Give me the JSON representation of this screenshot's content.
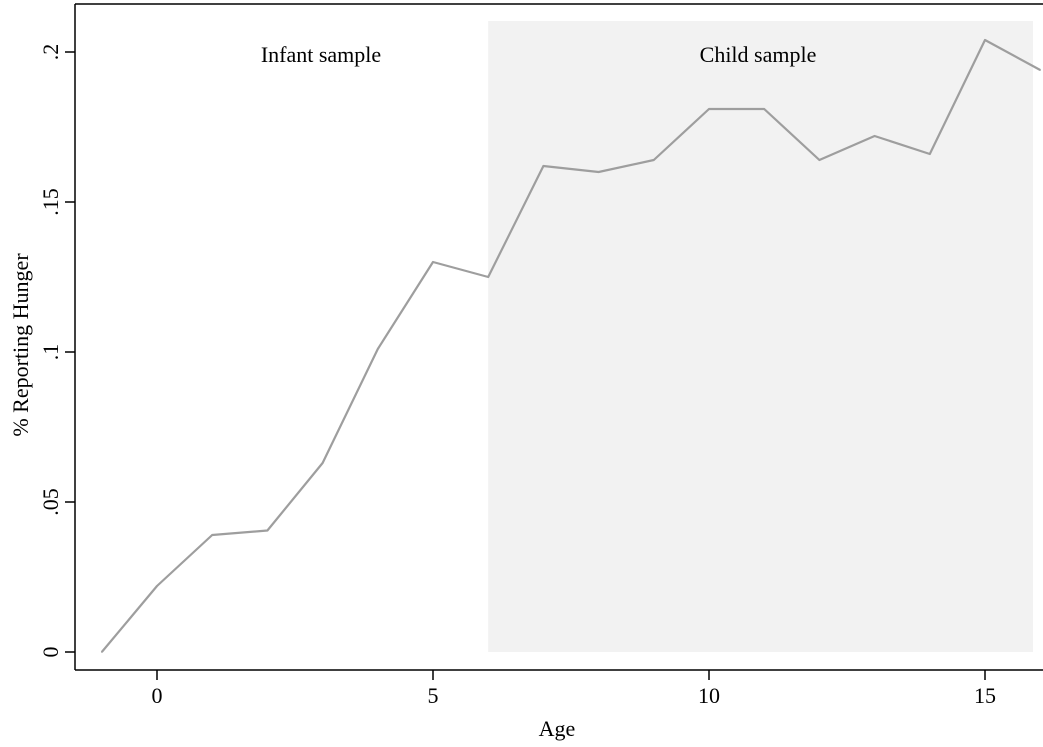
{
  "chart_data": {
    "type": "line",
    "xlabel": "Age",
    "ylabel": "% Reporting Hunger",
    "xlim": [
      -1,
      16
    ],
    "ylim": [
      0,
      0.2
    ],
    "x_ticks": [
      {
        "value": 0,
        "label": "0"
      },
      {
        "value": 5,
        "label": "5"
      },
      {
        "value": 10,
        "label": "10"
      },
      {
        "value": 15,
        "label": "15"
      }
    ],
    "y_ticks": [
      {
        "value": 0,
        "label": "0"
      },
      {
        "value": 0.05,
        "label": ".05"
      },
      {
        "value": 0.1,
        "label": ".1"
      },
      {
        "value": 0.15,
        "label": ".15"
      },
      {
        "value": 0.2,
        "label": ".2"
      }
    ],
    "grid": false,
    "series": [
      {
        "x": [
          -1,
          0,
          1,
          2,
          3,
          4,
          5,
          6,
          7,
          8,
          9,
          10,
          11,
          12,
          13,
          14,
          15,
          16
        ],
        "values": [
          0.0,
          0.022,
          0.039,
          0.0405,
          0.063,
          0.101,
          0.13,
          0.125,
          0.162,
          0.16,
          0.164,
          0.181,
          0.181,
          0.164,
          0.172,
          0.166,
          0.204,
          0.194
        ],
        "color": "#9e9e9e"
      }
    ],
    "regions": [
      {
        "label": "Infant sample",
        "x_range": [
          -1,
          6
        ],
        "color": "#ffffff"
      },
      {
        "label": "Child sample",
        "x_range": [
          6,
          16
        ],
        "color": "#f2f2f2"
      }
    ]
  }
}
